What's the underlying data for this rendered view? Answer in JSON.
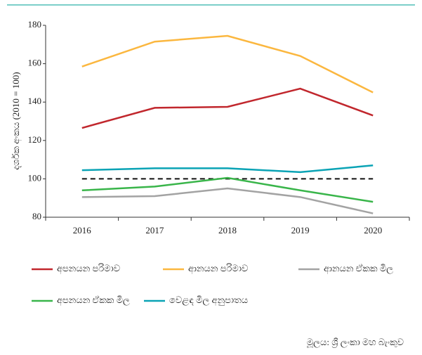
{
  "chart_data": {
    "type": "line",
    "y_label": "දර්ශක අංකය (2010 = 100)",
    "categories": [
      "2016",
      "2017",
      "2018",
      "2019",
      "2020"
    ],
    "series": [
      {
        "name": "අපනයන පරිමාව",
        "color": "#c1272d",
        "values": [
          126.5,
          137,
          137.5,
          147,
          133
        ]
      },
      {
        "name": "ආනයන පරිමාව",
        "color": "#fbb73f",
        "values": [
          158.5,
          171.5,
          174.5,
          164,
          145
        ]
      },
      {
        "name": "ආනයන ඒකක මිල",
        "color": "#a3a3a3",
        "values": [
          90.5,
          91,
          95,
          90.5,
          82
        ]
      },
      {
        "name": "අපනයන ඒකක මිල",
        "color": "#39b54a",
        "values": [
          94,
          96,
          100.5,
          94,
          88
        ]
      },
      {
        "name": "වෙළඳ මිල අනුපාතය",
        "color": "#0aa3b5",
        "values": [
          104.5,
          105.5,
          105.5,
          103.5,
          107
        ]
      }
    ],
    "reference_line": 100,
    "ylim": [
      80,
      180
    ],
    "yticks": [
      80,
      100,
      120,
      140,
      160,
      180
    ],
    "source": "මූලය: ශ්‍රී ලංකා මහ බැංකුව"
  }
}
